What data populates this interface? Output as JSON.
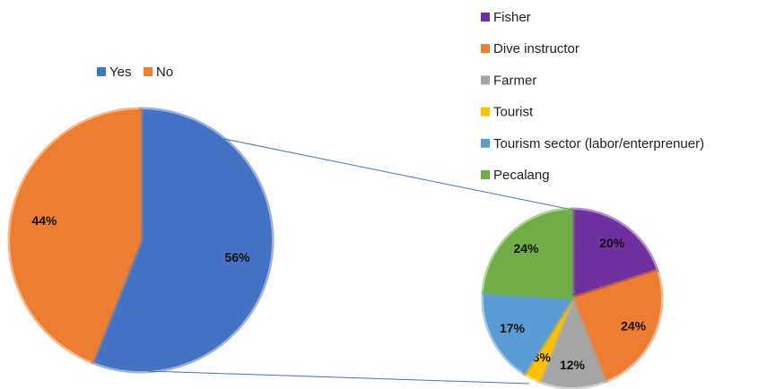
{
  "chart_data": [
    {
      "type": "pie",
      "categories": [
        "Yes",
        "No"
      ],
      "values": [
        56,
        44
      ],
      "value_labels": [
        "56%",
        "44%"
      ],
      "colors": [
        "#4472c4",
        "#ed7d31"
      ]
    },
    {
      "type": "pie",
      "categories": [
        "Fisher",
        "Dive instructor",
        "Farmer",
        "Tourist",
        "Tourism sector (labor/enterprenuer)",
        "Pecalang"
      ],
      "values": [
        20,
        24,
        12,
        3,
        17,
        24
      ],
      "value_labels": [
        "20%",
        "24%",
        "12%",
        "3%",
        "17%",
        "24%"
      ],
      "colors": [
        "#7030a0",
        "#ed7d31",
        "#a5a5a5",
        "#ffc000",
        "#5b9bd5",
        "#70ad47"
      ]
    }
  ]
}
